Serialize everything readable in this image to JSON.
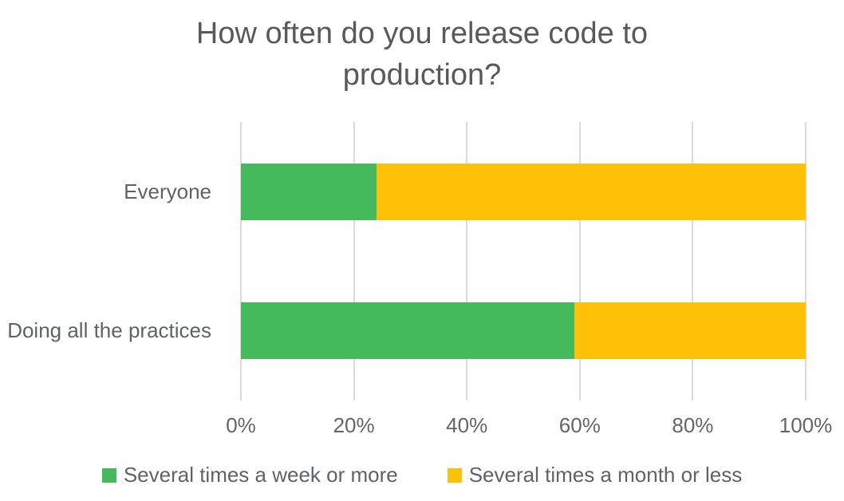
{
  "chart_data": {
    "type": "bar",
    "orientation": "horizontal",
    "stacked": true,
    "title": "How often do you release code to production?",
    "categories": [
      "Everyone",
      "Doing all the practices"
    ],
    "series": [
      {
        "name": "Several times a week or more",
        "color": "#45BA5C",
        "values": [
          24,
          59
        ]
      },
      {
        "name": "Several times a month or less",
        "color": "#FEC107",
        "values": [
          76,
          41
        ]
      }
    ],
    "x_ticks": [
      "0%",
      "20%",
      "40%",
      "60%",
      "80%",
      "100%"
    ],
    "xlim": [
      0,
      100
    ],
    "grid": true,
    "legend_position": "bottom"
  },
  "style": {
    "background": "#FFFFFF",
    "title_color": "#58595B",
    "category_label_color": "#5F6368",
    "tick_label_color": "#636567",
    "legend_label_color": "#5F6368",
    "gridline_color": "#DBDBDB"
  }
}
